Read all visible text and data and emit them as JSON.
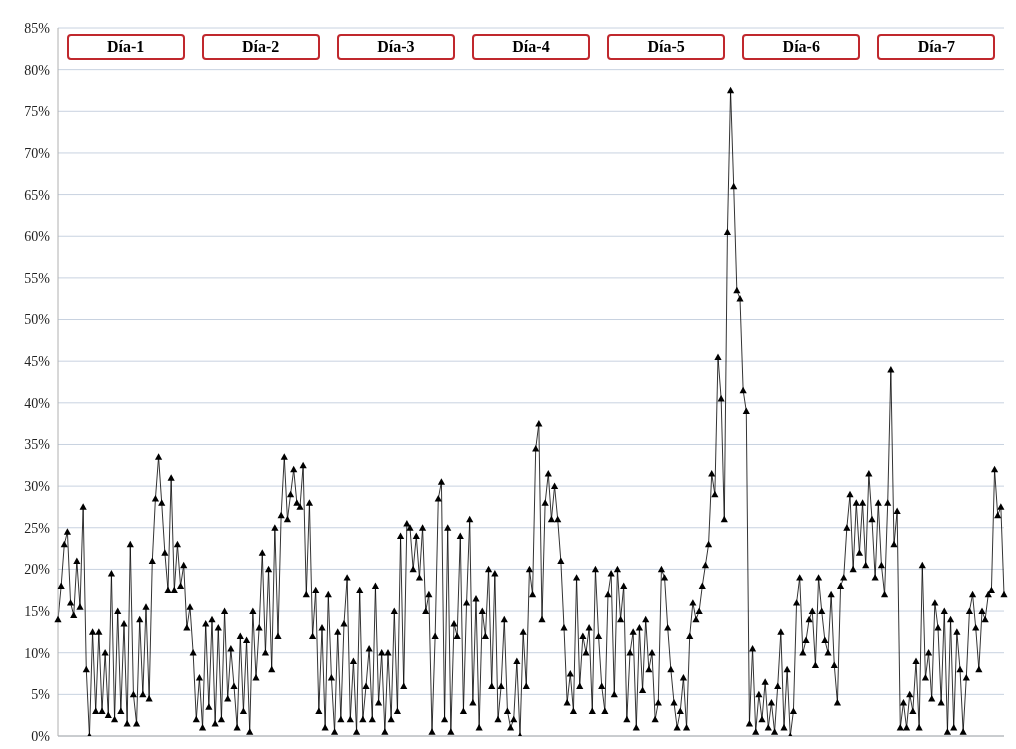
{
  "chart_data": {
    "type": "line",
    "annotations": [
      "Día-1",
      "Día-2",
      "Día-3",
      "Día-4",
      "Día-5",
      "Día-6",
      "Día-7"
    ],
    "categories": [
      null,
      null,
      null,
      null,
      null,
      null,
      null,
      null,
      null,
      null,
      null,
      null,
      null,
      null,
      null,
      null,
      null,
      null,
      null,
      null,
      null,
      null,
      null,
      null,
      null,
      null,
      null,
      null,
      null,
      null,
      null,
      null,
      null,
      null,
      null,
      null,
      null,
      null,
      null,
      null,
      null,
      null,
      null,
      null,
      null,
      null,
      null,
      null,
      null,
      null,
      null,
      null,
      null,
      null,
      null,
      null,
      null,
      null,
      null,
      null,
      null,
      null,
      null,
      null,
      null,
      null,
      null,
      null,
      null,
      null,
      null,
      null,
      null,
      null,
      null,
      null,
      null,
      null,
      null,
      null,
      null,
      null,
      null,
      null,
      null,
      null,
      null,
      null,
      null,
      null,
      null,
      null,
      null,
      null,
      null,
      null,
      null,
      null,
      null,
      null,
      null,
      null,
      null,
      null,
      null,
      null,
      null,
      null,
      null,
      null,
      null,
      null,
      null,
      null,
      null,
      null,
      null,
      null,
      null,
      null,
      null,
      null,
      null,
      null,
      null,
      null,
      null,
      null,
      null,
      null,
      null,
      null,
      null,
      null,
      null,
      null,
      null,
      null,
      null,
      null,
      null,
      null,
      null,
      null,
      null,
      null,
      null,
      null,
      null,
      null,
      null,
      null,
      null,
      null,
      null,
      null,
      null,
      null,
      null,
      null,
      null,
      null,
      null,
      null,
      null,
      null,
      null,
      null,
      null,
      null,
      null,
      null,
      null,
      null,
      null,
      null,
      null,
      null,
      null,
      null,
      null,
      null,
      null,
      null,
      null,
      null,
      null,
      null,
      null,
      null,
      null,
      null,
      null,
      null,
      null,
      null,
      null,
      null,
      null,
      null,
      null,
      null,
      null,
      null,
      null,
      null,
      null,
      null,
      null,
      null,
      null,
      null,
      null,
      null,
      null,
      null,
      null,
      null,
      null,
      null,
      null,
      null,
      null,
      null,
      null,
      null,
      null,
      null,
      null,
      null,
      null,
      null,
      null,
      null,
      null,
      null,
      null,
      null,
      null,
      null,
      null,
      null,
      null,
      null,
      null,
      null,
      null,
      null,
      null,
      null,
      null,
      null,
      null,
      null,
      null,
      null,
      null,
      null,
      null,
      null,
      null,
      null,
      null,
      null,
      null,
      null,
      null,
      null,
      null,
      null,
      null,
      null,
      null,
      null,
      null,
      null,
      null,
      null,
      null,
      null,
      null,
      null,
      null,
      null,
      null,
      null,
      null,
      null,
      null,
      null,
      null,
      null,
      null,
      null,
      null,
      null,
      null,
      null,
      null,
      null,
      null,
      null
    ],
    "series": [
      {
        "color": "#000000",
        "values": [
          14,
          18,
          23,
          24.5,
          16,
          14.5,
          21,
          15.5,
          27.5,
          8,
          0,
          12.5,
          3,
          12.5,
          3,
          10,
          2.5,
          19.5,
          2,
          15,
          3,
          13.5,
          1.5,
          23,
          5,
          1.5,
          14,
          5,
          15.5,
          4.5,
          21,
          28.5,
          33.5,
          28,
          22,
          17.5,
          31,
          17.5,
          23,
          18,
          20.5,
          13,
          15.5,
          10,
          2,
          7,
          1,
          13.5,
          3.5,
          14,
          1.5,
          13,
          2,
          15,
          4.5,
          10.5,
          6,
          1,
          12,
          3,
          11.5,
          0.5,
          15,
          7,
          13,
          22,
          10,
          20,
          8,
          25,
          12,
          26.5,
          33.5,
          26,
          29,
          32,
          28,
          27.5,
          32.5,
          17,
          28,
          12,
          17.5,
          3,
          13,
          1,
          17,
          7,
          0.5,
          12.5,
          2,
          13.5,
          19,
          2,
          9,
          0.5,
          17.5,
          2,
          6,
          10.5,
          2,
          18,
          4,
          10,
          0.5,
          10,
          2,
          15,
          3,
          24,
          6,
          25.5,
          25,
          20,
          24,
          19,
          25,
          15,
          17,
          0.5,
          12,
          28.5,
          30.5,
          2,
          25,
          0.5,
          13.5,
          12,
          24,
          3,
          16,
          26,
          4,
          16.5,
          1,
          15,
          12,
          20,
          6,
          19.5,
          2,
          6,
          14,
          3,
          1,
          2,
          9,
          0,
          12.5,
          6,
          20,
          17,
          34.5,
          37.5,
          14,
          28,
          31.5,
          26,
          30,
          26,
          21,
          13,
          4,
          7.5,
          3,
          19,
          6,
          12,
          10,
          13,
          3,
          20,
          12,
          6,
          3,
          17,
          19.5,
          5,
          20,
          14,
          18,
          2,
          10,
          12.5,
          1,
          13,
          5.5,
          14,
          8,
          10,
          2,
          4,
          20,
          19,
          13,
          8,
          4,
          1,
          3,
          7,
          1,
          12,
          16,
          14,
          15,
          18,
          20.5,
          23,
          31.5,
          29,
          45.5,
          40.5,
          26,
          60.5,
          77.5,
          66,
          53.5,
          52.5,
          41.5,
          39,
          1.5,
          10.5,
          0.5,
          5,
          2,
          6.5,
          1,
          4,
          0.5,
          6,
          12.5,
          1,
          8,
          0,
          3,
          16,
          19,
          10,
          11.5,
          14,
          15,
          8.5,
          19,
          15,
          11.5,
          10,
          17,
          8.5,
          4,
          18,
          19,
          25,
          29,
          20,
          28,
          22,
          28,
          20.5,
          31.5,
          26,
          19,
          28,
          20.5,
          17,
          28,
          44,
          23,
          27,
          1,
          4,
          1,
          5,
          3,
          9,
          1,
          20.5,
          7,
          10,
          4.5,
          16,
          13,
          4,
          15,
          0.5,
          14,
          1,
          12.5,
          8,
          0.5,
          7,
          15,
          17,
          13,
          8,
          15,
          14,
          17,
          17.5,
          32,
          26.5,
          27.5,
          17
        ]
      }
    ],
    "ylim": [
      0,
      85
    ],
    "yticks": [
      {
        "value": 0,
        "label": "0%"
      },
      {
        "value": 5,
        "label": "5%"
      },
      {
        "value": 10,
        "label": "10%"
      },
      {
        "value": 15,
        "label": "15%"
      },
      {
        "value": 20,
        "label": "20%"
      },
      {
        "value": 25,
        "label": "25%"
      },
      {
        "value": 30,
        "label": "30%"
      },
      {
        "value": 35,
        "label": "35%"
      },
      {
        "value": 40,
        "label": "40%"
      },
      {
        "value": 45,
        "label": "45%"
      },
      {
        "value": 50,
        "label": "50%"
      },
      {
        "value": 55,
        "label": "55%"
      },
      {
        "value": 60,
        "label": "60%"
      },
      {
        "value": 65,
        "label": "65%"
      },
      {
        "value": 70,
        "label": "70%"
      },
      {
        "value": 75,
        "label": "75%"
      },
      {
        "value": 80,
        "label": "80%"
      },
      {
        "value": 85,
        "label": "85%"
      }
    ],
    "grid": "y",
    "legend": false,
    "marker": "triangle",
    "line_style": "solid"
  }
}
